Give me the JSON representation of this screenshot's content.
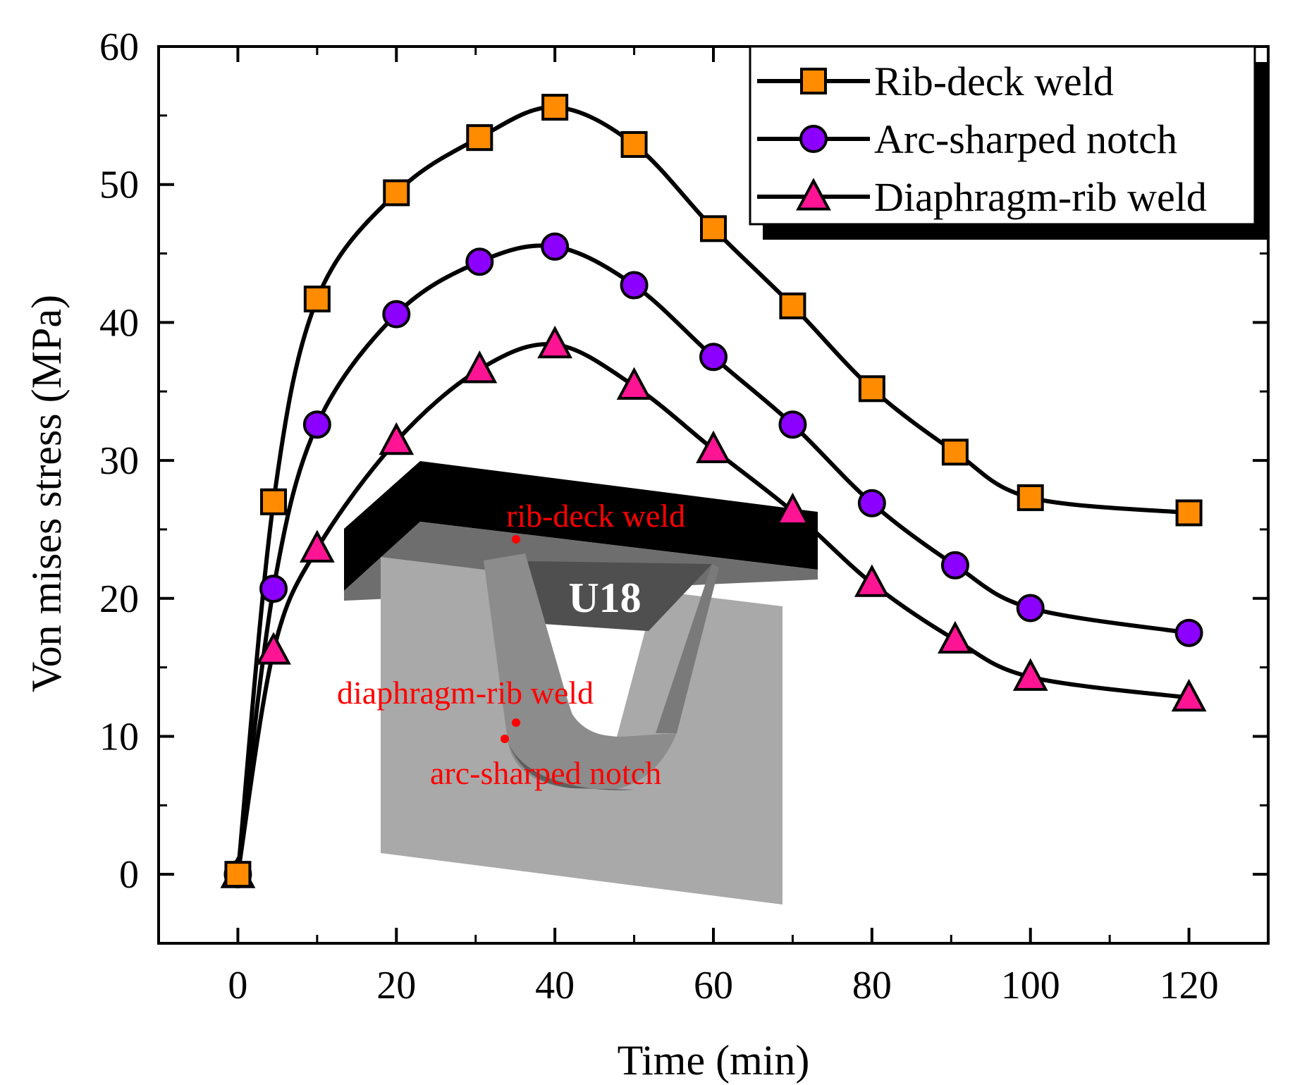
{
  "chart_data": {
    "type": "line",
    "title": "",
    "xlabel": "Time (min)",
    "ylabel": "Von mises stress (MPa)",
    "xlim": [
      -10,
      130
    ],
    "ylim": [
      -5,
      60
    ],
    "xticks": [
      0,
      20,
      40,
      60,
      80,
      100,
      120
    ],
    "yticks": [
      0,
      10,
      20,
      30,
      40,
      50,
      60
    ],
    "x": [
      0,
      4.5,
      10,
      20,
      30.5,
      40,
      50,
      60,
      70,
      80,
      90.5,
      100,
      120
    ],
    "series": [
      {
        "name": "Rib-deck weld",
        "marker": "square",
        "color": "#ff8c00",
        "values": [
          0,
          27,
          41.7,
          49.4,
          53.4,
          55.6,
          52.9,
          46.8,
          41.2,
          35.2,
          30.6,
          27.3,
          26.2
        ]
      },
      {
        "name": "Arc-sharped notch",
        "marker": "circle",
        "color": "#8b00ff",
        "values": [
          0,
          20.7,
          32.6,
          40.6,
          44.4,
          45.5,
          42.7,
          37.5,
          32.6,
          26.9,
          22.4,
          19.3,
          17.5
        ]
      },
      {
        "name": "Diaphragm-rib weld",
        "marker": "triangle",
        "color": "#ff1493",
        "values": [
          0,
          16.2,
          23.6,
          31.4,
          36.6,
          38.4,
          35.4,
          30.8,
          26.3,
          21.1,
          17.0,
          14.3,
          12.8
        ]
      }
    ],
    "legend_position": "top-right",
    "inset": {
      "title": "U18",
      "labels": [
        "rib-deck weld",
        "diaphragm-rib weld",
        "arc-sharped notch"
      ],
      "label_color": "#ff0000"
    }
  }
}
